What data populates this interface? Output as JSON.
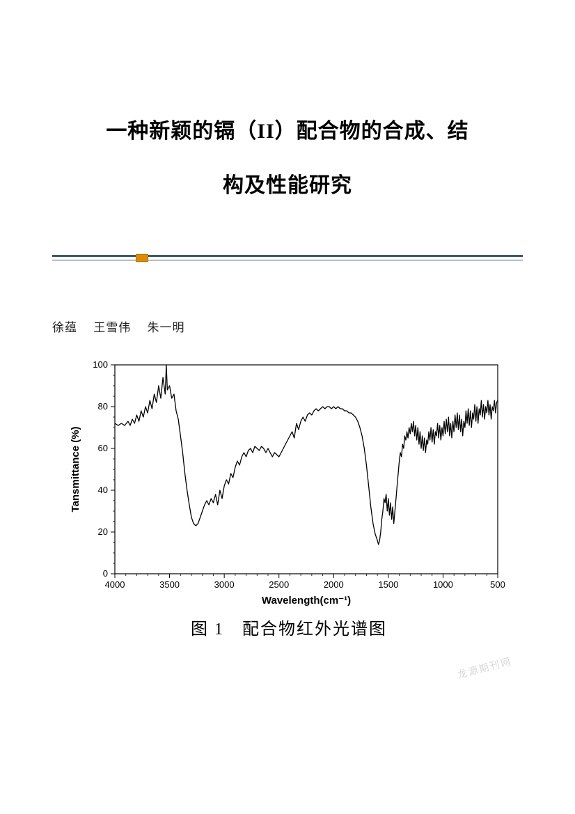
{
  "title": {
    "line1": "一种新颖的镉（II）配合物的合成、结",
    "line2": "构及性能研究"
  },
  "authors": [
    "徐蕴",
    "王雪伟",
    "朱一明"
  ],
  "divider": {
    "top_color": "#3b5a72",
    "top_width": 3,
    "gap": 4,
    "bot_width": 1,
    "badge_color": "#e08a00",
    "badge_border": "#c07000"
  },
  "figure1": {
    "type": "line",
    "caption": "图 1　配合物红外光谱图",
    "xlabel": "Wavelength(cm⁻¹)",
    "ylabel": "Tansmittance (%)",
    "xlim": [
      4000,
      500
    ],
    "ylim": [
      0,
      100
    ],
    "xticks": [
      4000,
      3500,
      3000,
      2500,
      2000,
      1500,
      1000,
      500
    ],
    "yticks": [
      0,
      20,
      40,
      60,
      80,
      100
    ],
    "line_color": "#000000",
    "line_width": 1.3,
    "axis_color": "#000000",
    "background_color": "#ffffff",
    "label_fontsize": 15,
    "tick_fontsize": 13,
    "tick_len_major": 6,
    "tick_len_minor": 3,
    "data": [
      [
        4000,
        72
      ],
      [
        3970,
        71
      ],
      [
        3940,
        72
      ],
      [
        3910,
        71
      ],
      [
        3880,
        73
      ],
      [
        3860,
        71
      ],
      [
        3840,
        74
      ],
      [
        3820,
        72
      ],
      [
        3800,
        76
      ],
      [
        3780,
        73
      ],
      [
        3760,
        78
      ],
      [
        3740,
        75
      ],
      [
        3720,
        80
      ],
      [
        3700,
        77
      ],
      [
        3680,
        83
      ],
      [
        3660,
        79
      ],
      [
        3640,
        86
      ],
      [
        3620,
        82
      ],
      [
        3600,
        90
      ],
      [
        3580,
        84
      ],
      [
        3560,
        94
      ],
      [
        3540,
        86
      ],
      [
        3530,
        100
      ],
      [
        3520,
        88
      ],
      [
        3500,
        90
      ],
      [
        3480,
        84
      ],
      [
        3460,
        86
      ],
      [
        3440,
        78
      ],
      [
        3420,
        74
      ],
      [
        3400,
        66
      ],
      [
        3380,
        58
      ],
      [
        3360,
        48
      ],
      [
        3340,
        40
      ],
      [
        3320,
        33
      ],
      [
        3300,
        27
      ],
      [
        3280,
        24
      ],
      [
        3260,
        23
      ],
      [
        3240,
        24
      ],
      [
        3220,
        27
      ],
      [
        3200,
        30
      ],
      [
        3180,
        33
      ],
      [
        3160,
        35
      ],
      [
        3140,
        33
      ],
      [
        3120,
        36
      ],
      [
        3100,
        34
      ],
      [
        3080,
        38
      ],
      [
        3060,
        33
      ],
      [
        3040,
        40
      ],
      [
        3020,
        36
      ],
      [
        3000,
        42
      ],
      [
        2980,
        45
      ],
      [
        2960,
        43
      ],
      [
        2940,
        48
      ],
      [
        2920,
        46
      ],
      [
        2900,
        51
      ],
      [
        2880,
        54
      ],
      [
        2860,
        52
      ],
      [
        2840,
        56
      ],
      [
        2820,
        58
      ],
      [
        2800,
        56
      ],
      [
        2780,
        59
      ],
      [
        2760,
        60
      ],
      [
        2740,
        58
      ],
      [
        2720,
        61
      ],
      [
        2700,
        60
      ],
      [
        2680,
        59
      ],
      [
        2660,
        61
      ],
      [
        2640,
        60
      ],
      [
        2620,
        58
      ],
      [
        2600,
        60
      ],
      [
        2580,
        58
      ],
      [
        2560,
        56
      ],
      [
        2540,
        58
      ],
      [
        2520,
        57
      ],
      [
        2500,
        56
      ],
      [
        2480,
        58
      ],
      [
        2460,
        60
      ],
      [
        2440,
        62
      ],
      [
        2420,
        64
      ],
      [
        2400,
        66
      ],
      [
        2380,
        68
      ],
      [
        2360,
        65
      ],
      [
        2340,
        72
      ],
      [
        2320,
        69
      ],
      [
        2300,
        73
      ],
      [
        2280,
        75
      ],
      [
        2260,
        73
      ],
      [
        2240,
        76
      ],
      [
        2220,
        77
      ],
      [
        2200,
        76
      ],
      [
        2180,
        78
      ],
      [
        2160,
        79
      ],
      [
        2140,
        78
      ],
      [
        2120,
        79
      ],
      [
        2100,
        80
      ],
      [
        2080,
        79
      ],
      [
        2060,
        80
      ],
      [
        2040,
        80
      ],
      [
        2020,
        79
      ],
      [
        2000,
        80
      ],
      [
        1980,
        79
      ],
      [
        1960,
        80
      ],
      [
        1940,
        79
      ],
      [
        1920,
        79
      ],
      [
        1900,
        78
      ],
      [
        1880,
        78
      ],
      [
        1860,
        77
      ],
      [
        1840,
        77
      ],
      [
        1820,
        76
      ],
      [
        1800,
        75
      ],
      [
        1780,
        73
      ],
      [
        1760,
        70
      ],
      [
        1740,
        66
      ],
      [
        1720,
        60
      ],
      [
        1700,
        52
      ],
      [
        1680,
        42
      ],
      [
        1660,
        32
      ],
      [
        1640,
        24
      ],
      [
        1620,
        19
      ],
      [
        1600,
        16
      ],
      [
        1590,
        14
      ],
      [
        1580,
        16
      ],
      [
        1570,
        20
      ],
      [
        1560,
        26
      ],
      [
        1550,
        30
      ],
      [
        1540,
        36
      ],
      [
        1530,
        34
      ],
      [
        1520,
        38
      ],
      [
        1510,
        30
      ],
      [
        1500,
        36
      ],
      [
        1490,
        28
      ],
      [
        1480,
        34
      ],
      [
        1470,
        26
      ],
      [
        1460,
        32
      ],
      [
        1450,
        24
      ],
      [
        1440,
        30
      ],
      [
        1430,
        36
      ],
      [
        1420,
        42
      ],
      [
        1410,
        48
      ],
      [
        1400,
        54
      ],
      [
        1390,
        58
      ],
      [
        1380,
        56
      ],
      [
        1370,
        62
      ],
      [
        1360,
        60
      ],
      [
        1350,
        66
      ],
      [
        1340,
        64
      ],
      [
        1330,
        68
      ],
      [
        1320,
        65
      ],
      [
        1310,
        70
      ],
      [
        1300,
        67
      ],
      [
        1290,
        72
      ],
      [
        1280,
        68
      ],
      [
        1270,
        73
      ],
      [
        1260,
        66
      ],
      [
        1250,
        71
      ],
      [
        1240,
        64
      ],
      [
        1230,
        70
      ],
      [
        1220,
        62
      ],
      [
        1210,
        68
      ],
      [
        1200,
        60
      ],
      [
        1190,
        66
      ],
      [
        1180,
        59
      ],
      [
        1170,
        65
      ],
      [
        1160,
        58
      ],
      [
        1150,
        64
      ],
      [
        1140,
        62
      ],
      [
        1130,
        68
      ],
      [
        1120,
        64
      ],
      [
        1110,
        70
      ],
      [
        1100,
        63
      ],
      [
        1090,
        69
      ],
      [
        1080,
        62
      ],
      [
        1070,
        68
      ],
      [
        1060,
        66
      ],
      [
        1050,
        72
      ],
      [
        1040,
        65
      ],
      [
        1030,
        71
      ],
      [
        1020,
        64
      ],
      [
        1010,
        70
      ],
      [
        1000,
        66
      ],
      [
        990,
        73
      ],
      [
        980,
        67
      ],
      [
        970,
        74
      ],
      [
        960,
        68
      ],
      [
        950,
        75
      ],
      [
        940,
        66
      ],
      [
        930,
        72
      ],
      [
        920,
        65
      ],
      [
        910,
        73
      ],
      [
        900,
        68
      ],
      [
        890,
        76
      ],
      [
        880,
        70
      ],
      [
        870,
        77
      ],
      [
        860,
        69
      ],
      [
        850,
        76
      ],
      [
        840,
        68
      ],
      [
        830,
        74
      ],
      [
        820,
        66
      ],
      [
        810,
        73
      ],
      [
        800,
        70
      ],
      [
        790,
        78
      ],
      [
        780,
        72
      ],
      [
        770,
        79
      ],
      [
        760,
        71
      ],
      [
        750,
        78
      ],
      [
        740,
        70
      ],
      [
        730,
        77
      ],
      [
        720,
        74
      ],
      [
        710,
        81
      ],
      [
        700,
        73
      ],
      [
        690,
        80
      ],
      [
        680,
        72
      ],
      [
        670,
        79
      ],
      [
        660,
        76
      ],
      [
        650,
        83
      ],
      [
        640,
        75
      ],
      [
        630,
        81
      ],
      [
        620,
        74
      ],
      [
        610,
        80
      ],
      [
        600,
        77
      ],
      [
        590,
        83
      ],
      [
        580,
        76
      ],
      [
        570,
        81
      ],
      [
        560,
        74
      ],
      [
        550,
        80
      ],
      [
        540,
        78
      ],
      [
        530,
        83
      ],
      [
        520,
        77
      ],
      [
        510,
        82
      ],
      [
        500,
        83
      ]
    ]
  },
  "watermark": "龙源期刊网"
}
